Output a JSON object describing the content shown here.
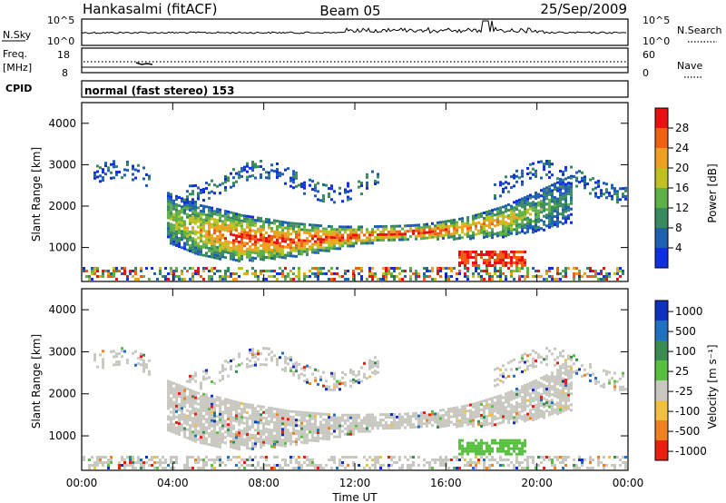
{
  "header": {
    "station": "Hankasalmi (fitACF)",
    "beam": "Beam 05",
    "date": "25/Sep/2009"
  },
  "noise_panel": {
    "left_label": "N.Sky",
    "right_label": "N.Search",
    "tick_top": "10^5",
    "tick_bottom": "10^0"
  },
  "freq_panel": {
    "left_label_1": "Freq.",
    "left_label_2": "[MHz]",
    "left_tick_top": "18",
    "left_tick_bottom": "8",
    "right_label": "Nave",
    "right_tick_top": "60",
    "right_tick_bottom": "0"
  },
  "cpid_panel": {
    "label": "CPID",
    "text": "normal (fast stereo) 153"
  },
  "colors": {
    "power": [
      "#1030e0",
      "#2060b0",
      "#3a8a60",
      "#60b048",
      "#c0c020",
      "#f0a020",
      "#f06010",
      "#e81010"
    ],
    "velocity": [
      "#1030c0",
      "#2070c0",
      "#3a8c50",
      "#58c040",
      "#c8c8c0",
      "#f0c040",
      "#f08020",
      "#e82010"
    ]
  },
  "chart_data": [
    {
      "type": "heatmap",
      "quantity": "Power",
      "xlabel": "",
      "ylabel": "Slant Range [km]",
      "y_ticks": [
        "1000",
        "2000",
        "3000",
        "4000"
      ],
      "ylim": [
        180,
        4500
      ],
      "colorbar_label": "Power [dB]",
      "colorbar_ticks": [
        "4",
        "8",
        "12",
        "16",
        "20",
        "24",
        "28"
      ],
      "colorbar_range": [
        0,
        30
      ],
      "main_band": [
        {
          "t": 3.7,
          "range": 1750,
          "level": 3
        },
        {
          "t": 5,
          "range": 1450,
          "level": 5
        },
        {
          "t": 7,
          "range": 1250,
          "level": 7
        },
        {
          "t": 9,
          "range": 1200,
          "level": 7
        },
        {
          "t": 11,
          "range": 1250,
          "level": 7
        },
        {
          "t": 13,
          "range": 1350,
          "level": 7
        },
        {
          "t": 15,
          "range": 1400,
          "level": 7
        },
        {
          "t": 17,
          "range": 1500,
          "level": 6
        },
        {
          "t": 18.5,
          "range": 1650,
          "level": 5
        },
        {
          "t": 20,
          "range": 1900,
          "level": 3
        },
        {
          "t": 21.5,
          "range": 2200,
          "level": 2
        }
      ]
    },
    {
      "type": "heatmap",
      "quantity": "Velocity",
      "xlabel": "Time UT",
      "ylabel": "Slant Range [km]",
      "y_ticks": [
        "1000",
        "2000",
        "3000",
        "4000"
      ],
      "ylim": [
        180,
        4500
      ],
      "x_ticks": [
        "00:00",
        "04:00",
        "08:00",
        "12:00",
        "16:00",
        "20:00",
        "00:00"
      ],
      "xlim": [
        0,
        24
      ],
      "colorbar_label": "Velocity [m s⁻¹]",
      "colorbar_ticks": [
        "1000",
        "500",
        "100",
        "25",
        "-25",
        "-100",
        "-500",
        "-1000"
      ]
    }
  ]
}
